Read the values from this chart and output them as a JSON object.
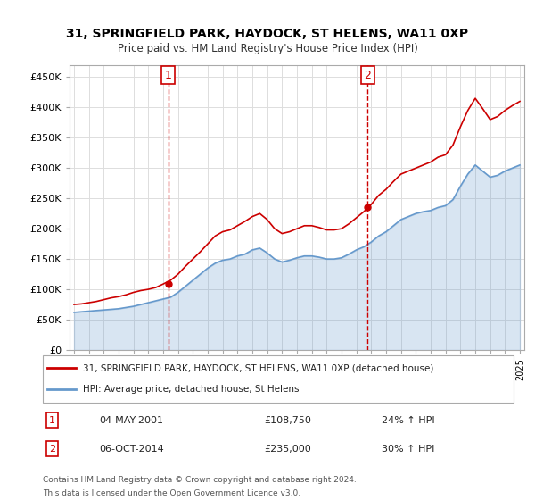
{
  "title": "31, SPRINGFIELD PARK, HAYDOCK, ST HELENS, WA11 0XP",
  "subtitle": "Price paid vs. HM Land Registry's House Price Index (HPI)",
  "legend_line1": "31, SPRINGFIELD PARK, HAYDOCK, ST HELENS, WA11 0XP (detached house)",
  "legend_line2": "HPI: Average price, detached house, St Helens",
  "annotation1_label": "1",
  "annotation1_date": "04-MAY-2001",
  "annotation1_price": "£108,750",
  "annotation1_hpi": "24% ↑ HPI",
  "annotation2_label": "2",
  "annotation2_date": "06-OCT-2014",
  "annotation2_price": "£235,000",
  "annotation2_hpi": "30% ↑ HPI",
  "footer1": "Contains HM Land Registry data © Crown copyright and database right 2024.",
  "footer2": "This data is licensed under the Open Government Licence v3.0.",
  "hpi_color": "#6699cc",
  "price_color": "#cc0000",
  "annotation_color": "#cc0000",
  "ylim_min": 0,
  "ylim_max": 470000,
  "yticks": [
    0,
    50000,
    100000,
    150000,
    200000,
    250000,
    300000,
    350000,
    400000,
    450000
  ],
  "ytick_labels": [
    "£0",
    "£50K",
    "£100K",
    "£150K",
    "£200K",
    "£250K",
    "£300K",
    "£350K",
    "£400K",
    "£450K"
  ],
  "year_start": 1995,
  "year_end": 2025,
  "sale1_year": 2001.34,
  "sale1_value": 108750,
  "sale2_year": 2014.76,
  "sale2_value": 235000,
  "hpi_years": [
    1995,
    1995.5,
    1996,
    1996.5,
    1997,
    1997.5,
    1998,
    1998.5,
    1999,
    1999.5,
    2000,
    2000.5,
    2001,
    2001.5,
    2002,
    2002.5,
    2003,
    2003.5,
    2004,
    2004.5,
    2005,
    2005.5,
    2006,
    2006.5,
    2007,
    2007.5,
    2008,
    2008.5,
    2009,
    2009.5,
    2010,
    2010.5,
    2011,
    2011.5,
    2012,
    2012.5,
    2013,
    2013.5,
    2014,
    2014.5,
    2015,
    2015.5,
    2016,
    2016.5,
    2017,
    2017.5,
    2018,
    2018.5,
    2019,
    2019.5,
    2020,
    2020.5,
    2021,
    2021.5,
    2022,
    2022.5,
    2023,
    2023.5,
    2024,
    2024.5,
    2025
  ],
  "hpi_values": [
    62000,
    63000,
    64000,
    65000,
    66000,
    67000,
    68000,
    70000,
    72000,
    75000,
    78000,
    81000,
    84000,
    87000,
    95000,
    105000,
    115000,
    125000,
    135000,
    143000,
    148000,
    150000,
    155000,
    158000,
    165000,
    168000,
    160000,
    150000,
    145000,
    148000,
    152000,
    155000,
    155000,
    153000,
    150000,
    150000,
    152000,
    158000,
    165000,
    170000,
    178000,
    188000,
    195000,
    205000,
    215000,
    220000,
    225000,
    228000,
    230000,
    235000,
    238000,
    248000,
    270000,
    290000,
    305000,
    295000,
    285000,
    288000,
    295000,
    300000,
    305000
  ],
  "price_years": [
    1995,
    1995.5,
    1996,
    1996.5,
    1997,
    1997.5,
    1998,
    1998.5,
    1999,
    1999.5,
    2000,
    2000.5,
    2001,
    2001.5,
    2002,
    2002.5,
    2003,
    2003.5,
    2004,
    2004.5,
    2005,
    2005.5,
    2006,
    2006.5,
    2007,
    2007.5,
    2008,
    2008.5,
    2009,
    2009.5,
    2010,
    2010.5,
    2011,
    2011.5,
    2012,
    2012.5,
    2013,
    2013.5,
    2014,
    2014.5,
    2015,
    2015.5,
    2016,
    2016.5,
    2017,
    2017.5,
    2018,
    2018.5,
    2019,
    2019.5,
    2020,
    2020.5,
    2021,
    2021.5,
    2022,
    2022.5,
    2023,
    2023.5,
    2024,
    2024.5,
    2025
  ],
  "price_values": [
    75000,
    76000,
    78000,
    80000,
    83000,
    86000,
    88000,
    91000,
    95000,
    98000,
    100000,
    103000,
    108750,
    115000,
    125000,
    138000,
    150000,
    162000,
    175000,
    188000,
    195000,
    198000,
    205000,
    212000,
    220000,
    225000,
    215000,
    200000,
    192000,
    195000,
    200000,
    205000,
    205000,
    202000,
    198000,
    198000,
    200000,
    208000,
    218000,
    228000,
    240000,
    255000,
    265000,
    278000,
    290000,
    295000,
    300000,
    305000,
    310000,
    318000,
    322000,
    338000,
    368000,
    395000,
    415000,
    398000,
    380000,
    385000,
    395000,
    403000,
    410000
  ]
}
